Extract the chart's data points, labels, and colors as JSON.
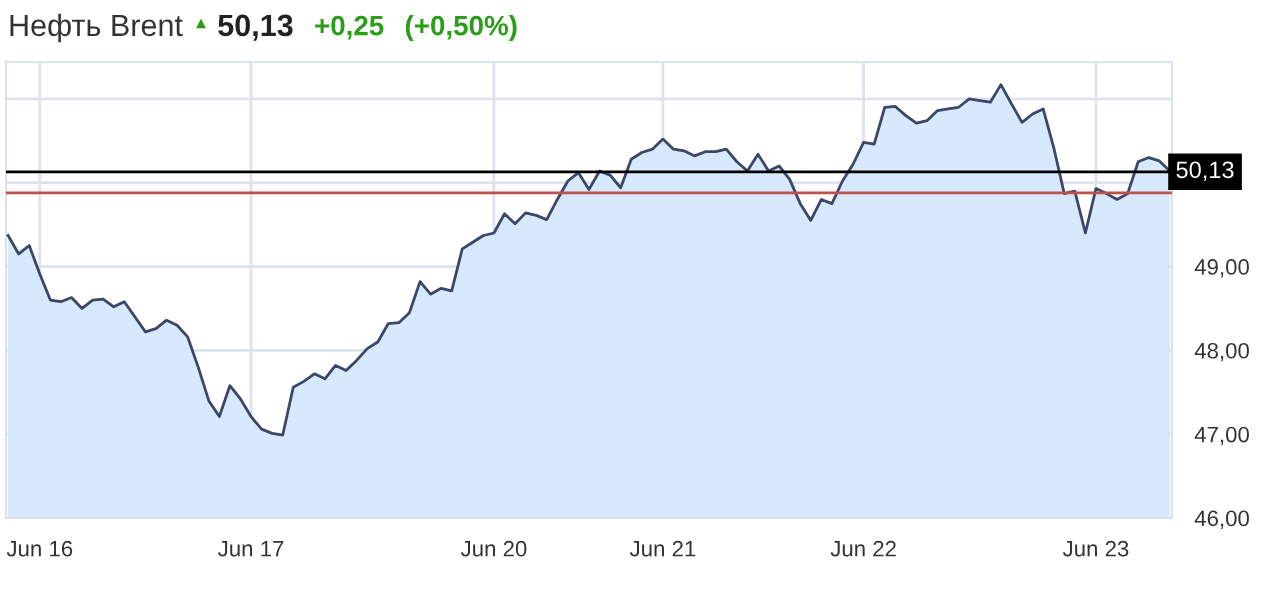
{
  "chart_data": {
    "type": "area",
    "title": "Нефть Brent",
    "annotations": [
      "▲",
      "50,13",
      "+0,25",
      "(+0,50%)"
    ],
    "categories": [
      null,
      null,
      null,
      "Jun 16",
      null,
      null,
      null,
      null,
      null,
      null,
      null,
      null,
      null,
      null,
      null,
      null,
      null,
      null,
      null,
      null,
      null,
      null,
      null,
      "Jun 17",
      null,
      null,
      null,
      null,
      null,
      null,
      null,
      null,
      null,
      null,
      null,
      null,
      null,
      null,
      null,
      null,
      null,
      null,
      null,
      null,
      null,
      null,
      "Jun 20",
      null,
      null,
      null,
      null,
      null,
      null,
      null,
      null,
      null,
      null,
      null,
      null,
      null,
      null,
      null,
      "Jun 21",
      null,
      null,
      null,
      null,
      null,
      null,
      null,
      null,
      null,
      null,
      null,
      null,
      null,
      null,
      null,
      null,
      null,
      null,
      "Jun 22",
      null,
      null,
      null,
      null,
      null,
      null,
      null,
      null,
      null,
      null,
      null,
      null,
      null,
      null,
      null,
      null,
      null,
      null,
      null,
      null,
      null,
      "Jun 23",
      null,
      null,
      null,
      null,
      null,
      null,
      null
    ],
    "series": [
      {
        "color": "#3b4668",
        "values": [
          49.37,
          49.15,
          49.25,
          48.91,
          48.6,
          48.58,
          48.63,
          48.5,
          48.6,
          48.61,
          48.52,
          48.58,
          48.4,
          48.22,
          48.26,
          48.36,
          48.3,
          48.16,
          47.8,
          47.4,
          47.21,
          47.58,
          47.42,
          47.21,
          47.06,
          47.01,
          46.99,
          47.56,
          47.63,
          47.72,
          47.66,
          47.82,
          47.76,
          47.88,
          48.02,
          48.1,
          48.32,
          48.33,
          48.45,
          48.82,
          48.67,
          48.74,
          48.71,
          49.21,
          49.29,
          49.37,
          49.4,
          49.63,
          49.51,
          49.64,
          49.61,
          49.56,
          49.8,
          50.02,
          50.12,
          49.92,
          50.14,
          50.09,
          49.94,
          50.28,
          50.36,
          50.4,
          50.52,
          50.4,
          50.38,
          50.32,
          50.37,
          50.37,
          50.4,
          50.25,
          50.14,
          50.34,
          50.14,
          50.2,
          50.04,
          49.75,
          49.55,
          49.8,
          49.75,
          50.02,
          50.22,
          50.48,
          50.46,
          50.9,
          50.91,
          50.8,
          50.71,
          50.74,
          50.86,
          50.88,
          50.9,
          51.0,
          50.98,
          50.96,
          51.17,
          50.94,
          50.72,
          50.82,
          50.88,
          50.42,
          49.87,
          49.9,
          49.4,
          49.93,
          49.87,
          49.8,
          49.87,
          50.25,
          50.3,
          50.26,
          50.14
        ]
      }
    ],
    "ylim": [
      46,
      51.44
    ],
    "yticks": [
      {
        "value": 46,
        "label": "46,00"
      },
      {
        "value": 47,
        "label": "47,00"
      },
      {
        "value": 48,
        "label": "48,00"
      },
      {
        "value": 49,
        "label": "49,00"
      },
      {
        "value": 50,
        "label": null
      },
      {
        "value": 51,
        "label": null
      }
    ],
    "ref_lines": [
      {
        "axis": "y",
        "value": 50.13,
        "label": "50,13",
        "color": "#000000"
      },
      {
        "axis": "y",
        "value": 49.88,
        "color": "#c0504d"
      }
    ],
    "grid": true,
    "legend": false
  }
}
